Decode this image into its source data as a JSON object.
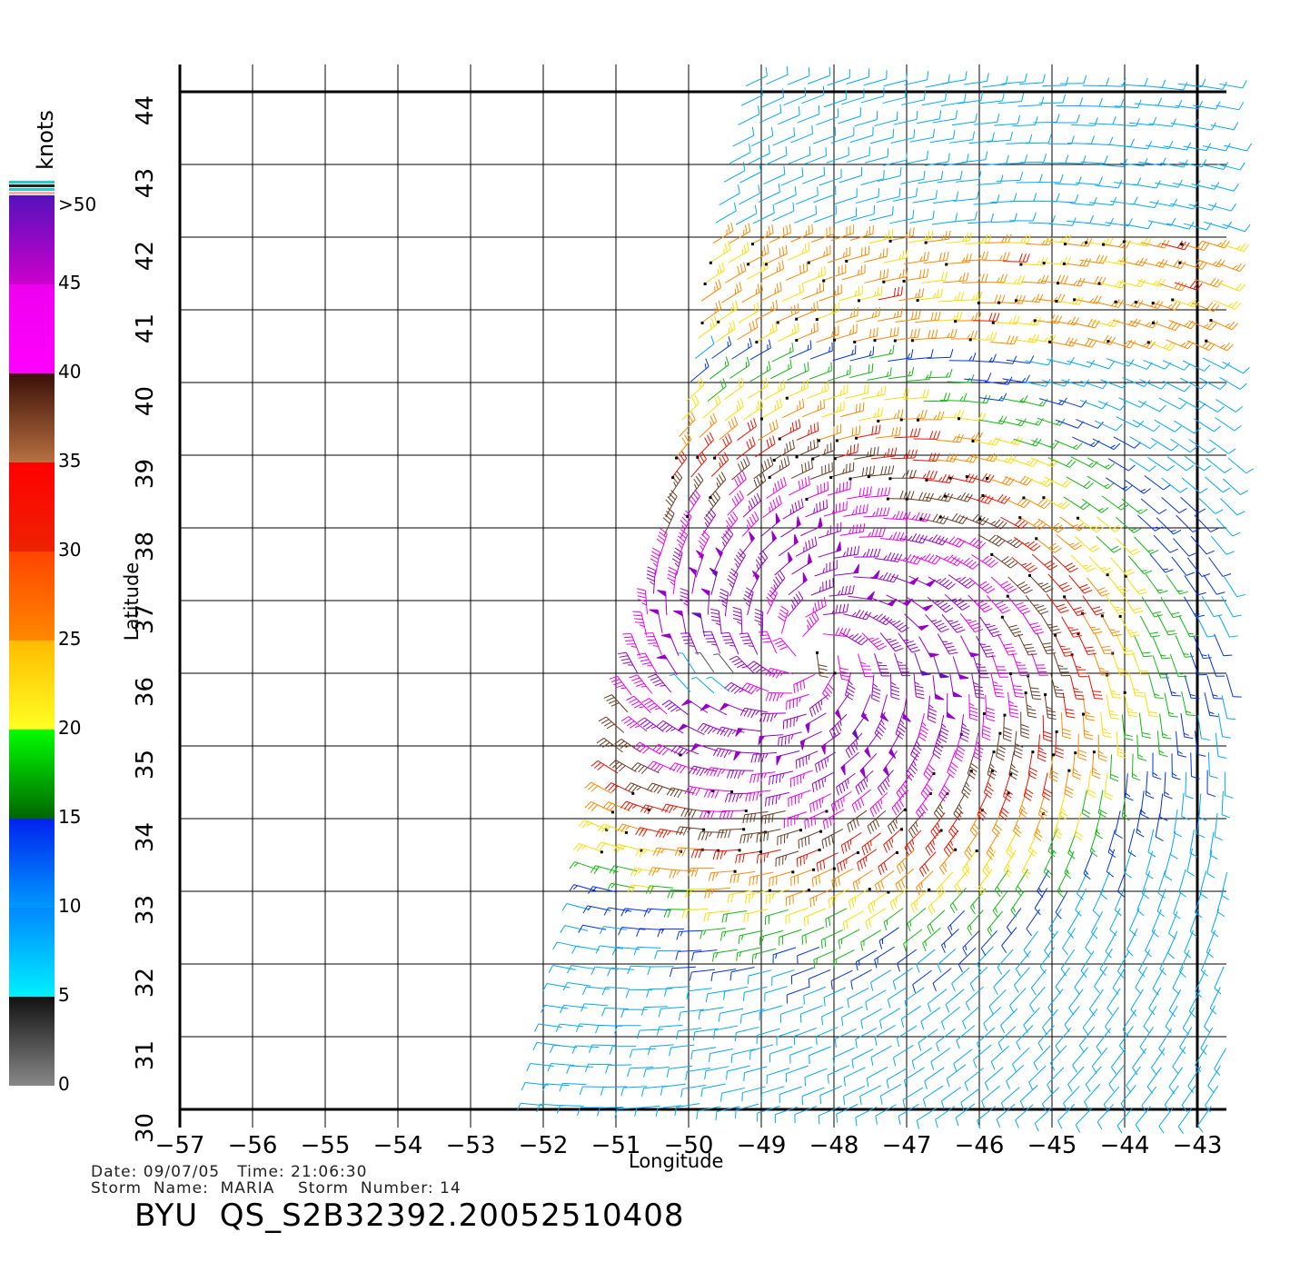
{
  "map": {
    "lon_range": [
      -57,
      -43
    ],
    "lat_range": [
      30,
      44
    ],
    "lon_ticks": [
      "-57",
      "-56",
      "-55",
      "-54",
      "-53",
      "-52",
      "-51",
      "-50",
      "-49",
      "-48",
      "-47",
      "-46",
      "-45",
      "-44",
      "-43"
    ],
    "lat_ticks": [
      "30",
      "31",
      "32",
      "33",
      "34",
      "35",
      "36",
      "37",
      "38",
      "39",
      "40",
      "41",
      "42",
      "43",
      "44"
    ],
    "xlabel": "Longitude",
    "ylabel": "Latitude",
    "grid": true,
    "swath_left_edge": [
      [
        -52.0,
        30.0
      ],
      [
        -51.4,
        32.5
      ],
      [
        -50.8,
        35.5
      ],
      [
        -50.4,
        37.6
      ],
      [
        -49.9,
        40.5
      ],
      [
        -49.6,
        42.5
      ],
      [
        -49.2,
        44.0
      ]
    ],
    "storm_center": {
      "lon": -48.3,
      "lat": 36.3
    },
    "eye": {
      "lon": -49.6,
      "lat": 35.9
    }
  },
  "colorbar": {
    "title": "knots",
    "labels": [
      ">50",
      "45",
      "40",
      "35",
      "30",
      "25",
      "20",
      "15",
      "10",
      "5",
      "0"
    ],
    "bins": [
      {
        "min": 0,
        "max": 5,
        "color": "#555555"
      },
      {
        "min": 5,
        "max": 10,
        "color": "#00aaff"
      },
      {
        "min": 10,
        "max": 15,
        "color": "#0033ee"
      },
      {
        "min": 15,
        "max": 20,
        "color": "#11bb11"
      },
      {
        "min": 20,
        "max": 25,
        "color": "#ffdd00"
      },
      {
        "min": 25,
        "max": 30,
        "color": "#ff8800"
      },
      {
        "min": 30,
        "max": 35,
        "color": "#ee1100"
      },
      {
        "min": 35,
        "max": 40,
        "color": "#6b3a22"
      },
      {
        "min": 40,
        "max": 45,
        "color": "#ee00ee"
      },
      {
        "min": 45,
        "max": 50,
        "color": "#9900cc"
      },
      {
        "min": 50,
        "max": 60,
        "color": "#6611bb"
      }
    ]
  },
  "info": {
    "line1": "Date: 09/07/05   Time: 21:06:30",
    "line2": "Storm  Name:  MARIA    Storm  Number: 14",
    "product_id": "BYU  QS_S2B32392.20052510408"
  }
}
